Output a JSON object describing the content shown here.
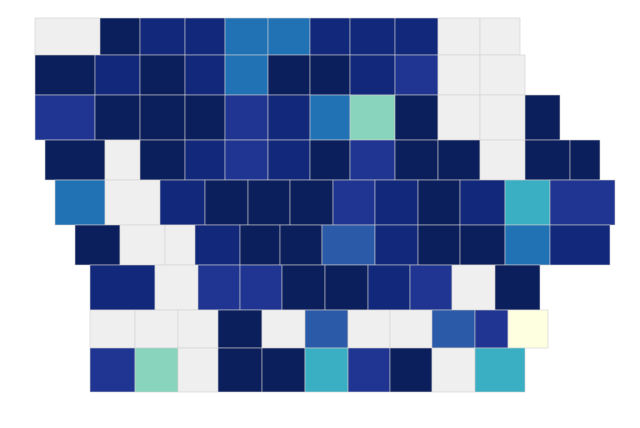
{
  "map": {
    "rows": [
      [
        "#efefef",
        "#0b1f5c",
        "#12287a",
        "#12287a",
        "#2171b5",
        "#2171b5",
        "#12287a",
        "#12287a",
        "#12287a",
        "#efefef",
        "#efefef"
      ],
      [
        "#0b1f5c",
        "#12287a",
        "#0b1f5c",
        "#12287a",
        "#2171b5",
        "#0b1f5c",
        "#0b1f5c",
        "#12287a",
        "#1f3591",
        "#efefef",
        "#efefef"
      ],
      [
        "#1f3591",
        "#0b1f5c",
        "#0b1f5c",
        "#0b1f5c",
        "#1f3591",
        "#12287a",
        "#2171b5",
        "#89d4bd",
        "#0b1f5c",
        "#efefef",
        "#efefef",
        "#0b1f5c"
      ],
      [
        "#0b1f5c",
        "#efefef",
        "#0b1f5c",
        "#12287a",
        "#1f3591",
        "#12287a",
        "#0b1f5c",
        "#1f3591",
        "#0b1f5c",
        "#0b1f5c",
        "#efefef",
        "#0b1f5c",
        "#0b1f5c"
      ],
      [
        "#2171b5",
        "#efefef",
        "#12287a",
        "#0b1f5c",
        "#0b1f5c",
        "#0b1f5c",
        "#1f3591",
        "#12287a",
        "#0b1f5c",
        "#12287a",
        "#3aafc4",
        "#1f3591"
      ],
      [
        "#0b1f5c",
        "#efefef",
        "#efefef",
        "#12287a",
        "#0b1f5c",
        "#0b1f5c",
        "#2b5ba8",
        "#12287a",
        "#0b1f5c",
        "#0b1f5c",
        "#2171b5",
        "#12287a"
      ],
      [
        "#12287a",
        "#efefef",
        "#1f3591",
        "#1f3591",
        "#0b1f5c",
        "#0b1f5c",
        "#12287a",
        "#1f3591",
        "#efefef",
        "#0b1f5c"
      ],
      [
        "#efefef",
        "#efefef",
        "#efefef",
        "#0b1f5c",
        "#efefef",
        "#2b5ba8",
        "#efefef",
        "#efefef",
        "#2b5ba8",
        "#1f3591",
        "#fefee0"
      ],
      [
        "#1f3591",
        "#89d4bd",
        "#efefef",
        "#0b1f5c",
        "#0b1f5c",
        "#3aafc4",
        "#1f3591",
        "#0b1f5c",
        "#efefef",
        "#3aafc4"
      ]
    ]
  }
}
